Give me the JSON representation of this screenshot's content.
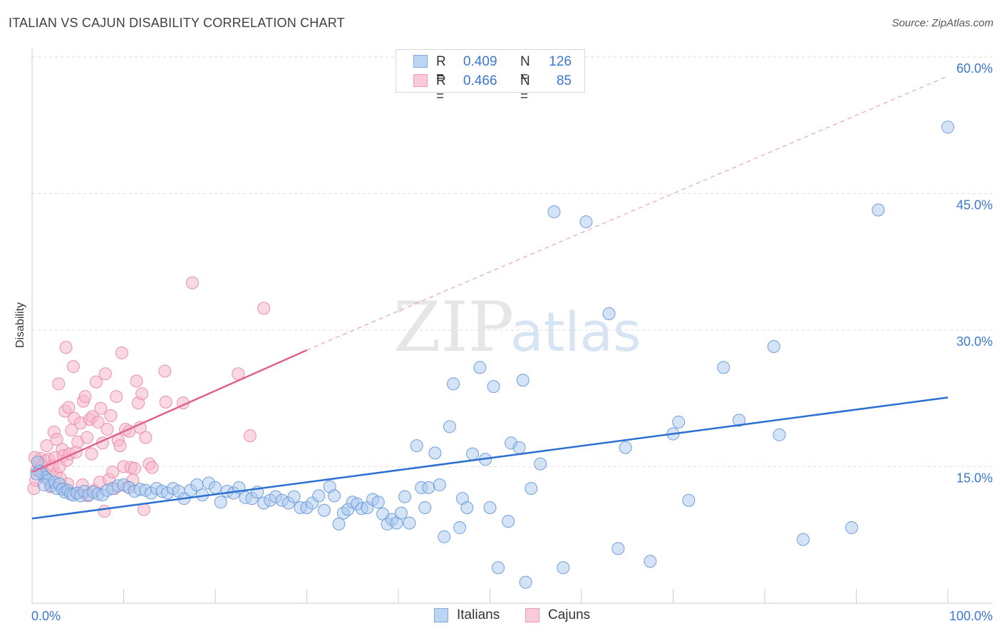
{
  "title": "ITALIAN VS CAJUN DISABILITY CORRELATION CHART",
  "source": "Source: ZipAtlas.com",
  "watermark": {
    "zip": "ZIP",
    "atlas": "atlas"
  },
  "legend": {
    "rows": [
      {
        "r_label": "R =",
        "r_value": "0.409",
        "n_label": "N =",
        "n_value": "126"
      },
      {
        "r_label": "R =",
        "r_value": "0.466",
        "n_label": "N =",
        "n_value": "85"
      }
    ]
  },
  "bottom_legend": {
    "italians": "Italians",
    "cajuns": "Cajuns"
  },
  "colors": {
    "italians_fill": "#a9c8ee",
    "italians_stroke": "#6f9fdc",
    "italians_line": "#2a6fd1",
    "cajuns_fill": "#f6b8cb",
    "cajuns_stroke": "#ec8fad",
    "cajuns_line": "#e0628f",
    "axis_label": "#3a78d0",
    "grid": "#dddddd"
  },
  "chart_data": {
    "type": "scatter",
    "title": "ITALIAN VS CAJUN DISABILITY CORRELATION CHART",
    "xlabel": "",
    "ylabel": "Disability",
    "xlim": [
      0,
      100
    ],
    "ylim": [
      0,
      60
    ],
    "x_tick_labels": [
      "0.0%",
      "100.0%"
    ],
    "y_ticks": [
      15,
      30,
      45,
      60
    ],
    "y_tick_labels": [
      "15.0%",
      "30.0%",
      "45.0%",
      "60.0%"
    ],
    "grid": true,
    "legend_position": "top-center",
    "series": [
      {
        "name": "Italians",
        "r": 0.409,
        "n": 126,
        "trend": {
          "x": [
            0,
            100
          ],
          "y": [
            9.3,
            22.6
          ],
          "dashed_extension": false
        },
        "points": [
          [
            0.6,
            15.5
          ],
          [
            0.8,
            14.5
          ],
          [
            1.1,
            14.2
          ],
          [
            1.5,
            13.8
          ],
          [
            1.8,
            13.5
          ],
          [
            2.1,
            12.9
          ],
          [
            2.4,
            13.3
          ],
          [
            2.7,
            12.6
          ],
          [
            3.0,
            13.1
          ],
          [
            3.3,
            12.5
          ],
          [
            3.6,
            12.2
          ],
          [
            3.9,
            12.4
          ],
          [
            4.2,
            12.0
          ],
          [
            4.5,
            11.9
          ],
          [
            4.9,
            12.1
          ],
          [
            5.3,
            11.8
          ],
          [
            5.7,
            12.3
          ],
          [
            6.2,
            11.9
          ],
          [
            6.7,
            12.2
          ],
          [
            7.2,
            12.0
          ],
          [
            7.7,
            11.9
          ],
          [
            8.2,
            12.4
          ],
          [
            8.8,
            12.6
          ],
          [
            9.4,
            12.9
          ],
          [
            10.0,
            13.0
          ],
          [
            10.6,
            12.7
          ],
          [
            11.2,
            12.3
          ],
          [
            11.8,
            12.5
          ],
          [
            12.4,
            12.4
          ],
          [
            13.0,
            12.1
          ],
          [
            13.6,
            12.6
          ],
          [
            14.2,
            12.3
          ],
          [
            14.8,
            12.1
          ],
          [
            15.4,
            12.6
          ],
          [
            16.0,
            12.3
          ],
          [
            16.6,
            11.5
          ],
          [
            17.3,
            12.4
          ],
          [
            18.0,
            13.0
          ],
          [
            18.6,
            11.9
          ],
          [
            19.3,
            13.2
          ],
          [
            20.0,
            12.7
          ],
          [
            20.6,
            11.1
          ],
          [
            21.3,
            12.3
          ],
          [
            22.0,
            12.1
          ],
          [
            22.6,
            12.7
          ],
          [
            23.3,
            11.6
          ],
          [
            24.0,
            11.5
          ],
          [
            24.6,
            12.2
          ],
          [
            25.3,
            11.0
          ],
          [
            26.0,
            11.3
          ],
          [
            26.6,
            11.7
          ],
          [
            27.3,
            11.3
          ],
          [
            28.0,
            11.0
          ],
          [
            28.6,
            11.7
          ],
          [
            29.3,
            10.5
          ],
          [
            30.0,
            10.5
          ],
          [
            30.6,
            11.0
          ],
          [
            31.3,
            11.8
          ],
          [
            31.9,
            10.2
          ],
          [
            32.5,
            12.8
          ],
          [
            33.0,
            11.8
          ],
          [
            33.5,
            8.7
          ],
          [
            34.0,
            9.9
          ],
          [
            34.5,
            10.3
          ],
          [
            35.0,
            11.1
          ],
          [
            35.5,
            10.9
          ],
          [
            36.0,
            10.4
          ],
          [
            36.6,
            10.5
          ],
          [
            37.2,
            11.4
          ],
          [
            37.8,
            11.1
          ],
          [
            38.3,
            9.8
          ],
          [
            38.8,
            8.7
          ],
          [
            39.3,
            9.2
          ],
          [
            39.8,
            8.8
          ],
          [
            40.3,
            9.9
          ],
          [
            40.7,
            11.7
          ],
          [
            41.2,
            8.8
          ],
          [
            42.0,
            17.3
          ],
          [
            42.5,
            12.7
          ],
          [
            42.9,
            10.5
          ],
          [
            43.3,
            12.7
          ],
          [
            44.0,
            16.5
          ],
          [
            44.5,
            13.0
          ],
          [
            45.0,
            7.3
          ],
          [
            45.6,
            19.4
          ],
          [
            46.0,
            24.1
          ],
          [
            46.7,
            8.3
          ],
          [
            47.0,
            11.5
          ],
          [
            47.5,
            10.5
          ],
          [
            48.1,
            16.4
          ],
          [
            48.9,
            25.9
          ],
          [
            49.5,
            15.8
          ],
          [
            50.0,
            10.5
          ],
          [
            50.4,
            23.8
          ],
          [
            50.9,
            3.9
          ],
          [
            52.0,
            9.0
          ],
          [
            52.3,
            17.6
          ],
          [
            53.2,
            17.1
          ],
          [
            53.6,
            24.5
          ],
          [
            53.9,
            2.3
          ],
          [
            54.5,
            12.6
          ],
          [
            55.5,
            15.3
          ],
          [
            57.0,
            43.0
          ],
          [
            58.0,
            3.9
          ],
          [
            60.5,
            41.9
          ],
          [
            63.0,
            31.8
          ],
          [
            64.0,
            6.0
          ],
          [
            64.8,
            17.1
          ],
          [
            67.5,
            4.6
          ],
          [
            70.0,
            18.6
          ],
          [
            70.6,
            19.9
          ],
          [
            71.7,
            11.3
          ],
          [
            75.5,
            25.9
          ],
          [
            77.2,
            20.1
          ],
          [
            81.0,
            28.2
          ],
          [
            81.6,
            18.5
          ],
          [
            84.2,
            7.0
          ],
          [
            89.5,
            8.3
          ],
          [
            92.4,
            43.2
          ],
          [
            100.0,
            52.3
          ],
          [
            0.5,
            14.2
          ],
          [
            1.3,
            13.0
          ]
        ]
      },
      {
        "name": "Cajuns",
        "r": 0.466,
        "n": 85,
        "trend": {
          "x": [
            0,
            30
          ],
          "y": [
            14.4,
            27.8
          ],
          "dashed_extension": {
            "x": [
              30,
              100
            ],
            "y": [
              27.8,
              57.9
            ]
          }
        },
        "points": [
          [
            0.2,
            12.6
          ],
          [
            0.4,
            13.5
          ],
          [
            0.5,
            14.6
          ],
          [
            0.7,
            15.3
          ],
          [
            0.9,
            15.9
          ],
          [
            1.1,
            14.4
          ],
          [
            1.3,
            13.9
          ],
          [
            1.5,
            15.6
          ],
          [
            1.6,
            17.3
          ],
          [
            1.8,
            15.8
          ],
          [
            2.0,
            12.8
          ],
          [
            2.1,
            14.8
          ],
          [
            2.3,
            15.1
          ],
          [
            2.4,
            18.8
          ],
          [
            2.5,
            16.0
          ],
          [
            2.6,
            14.2
          ],
          [
            2.7,
            18.0
          ],
          [
            2.9,
            24.1
          ],
          [
            3.0,
            15.0
          ],
          [
            3.1,
            13.7
          ],
          [
            3.3,
            16.9
          ],
          [
            3.4,
            16.2
          ],
          [
            3.5,
            12.6
          ],
          [
            3.6,
            21.1
          ],
          [
            3.7,
            28.1
          ],
          [
            3.8,
            15.7
          ],
          [
            3.9,
            13.1
          ],
          [
            4.0,
            21.5
          ],
          [
            4.1,
            16.4
          ],
          [
            4.3,
            19.0
          ],
          [
            4.5,
            26.0
          ],
          [
            4.6,
            20.3
          ],
          [
            4.8,
            16.6
          ],
          [
            5.0,
            17.7
          ],
          [
            5.1,
            12.1
          ],
          [
            5.3,
            19.8
          ],
          [
            5.5,
            13.0
          ],
          [
            5.6,
            22.2
          ],
          [
            5.8,
            22.7
          ],
          [
            6.0,
            18.2
          ],
          [
            6.1,
            11.8
          ],
          [
            6.3,
            20.2
          ],
          [
            6.5,
            16.4
          ],
          [
            6.6,
            20.5
          ],
          [
            6.8,
            12.4
          ],
          [
            7.0,
            24.3
          ],
          [
            7.2,
            19.9
          ],
          [
            7.4,
            13.3
          ],
          [
            7.5,
            21.4
          ],
          [
            7.7,
            17.6
          ],
          [
            7.9,
            10.1
          ],
          [
            8.0,
            25.2
          ],
          [
            8.2,
            19.1
          ],
          [
            8.4,
            13.6
          ],
          [
            8.6,
            20.6
          ],
          [
            8.8,
            14.4
          ],
          [
            9.0,
            12.6
          ],
          [
            9.2,
            22.7
          ],
          [
            9.4,
            17.9
          ],
          [
            9.6,
            17.3
          ],
          [
            9.8,
            27.5
          ],
          [
            10.0,
            15.0
          ],
          [
            10.2,
            19.1
          ],
          [
            10.4,
            12.8
          ],
          [
            10.6,
            18.9
          ],
          [
            10.8,
            14.9
          ],
          [
            11.0,
            13.5
          ],
          [
            11.2,
            14.8
          ],
          [
            11.4,
            24.4
          ],
          [
            11.6,
            22.0
          ],
          [
            11.8,
            19.3
          ],
          [
            12.0,
            23.0
          ],
          [
            12.2,
            10.3
          ],
          [
            12.4,
            18.2
          ],
          [
            12.8,
            15.3
          ],
          [
            13.1,
            14.9
          ],
          [
            14.5,
            25.5
          ],
          [
            14.6,
            22.1
          ],
          [
            16.5,
            22.0
          ],
          [
            17.5,
            35.2
          ],
          [
            22.5,
            25.2
          ],
          [
            23.8,
            18.4
          ],
          [
            25.3,
            32.4
          ],
          [
            1.0,
            15.2
          ],
          [
            0.3,
            16.0
          ]
        ]
      }
    ]
  }
}
